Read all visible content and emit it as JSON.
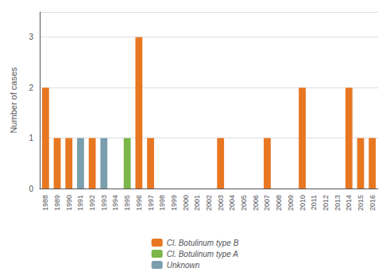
{
  "chart_data": {
    "type": "bar",
    "stacked": true,
    "grid": true,
    "legend": "bottom",
    "ylabel": "Number of cases",
    "categories": [
      "1988",
      "1989",
      "1990",
      "1991",
      "1992",
      "1993",
      "1994",
      "1995",
      "1996",
      "1997",
      "1998",
      "1999",
      "2000",
      "2001",
      "2002",
      "2003",
      "2004",
      "2005",
      "2006",
      "2007",
      "2008",
      "2009",
      "2010",
      "2011",
      "2012",
      "2013",
      "2014",
      "2015",
      "2016"
    ],
    "series": [
      {
        "name": "Cl. Botulinum type B",
        "color": "#E87722",
        "values": [
          2,
          1,
          1,
          0,
          1,
          0,
          0,
          0,
          3,
          1,
          0,
          0,
          0,
          0,
          0,
          1,
          0,
          0,
          0,
          1,
          0,
          0,
          2,
          0,
          0,
          0,
          2,
          1,
          1
        ]
      },
      {
        "name": "Cl. Botulinum type A",
        "color": "#7AB648",
        "values": [
          0,
          0,
          0,
          0,
          0,
          0,
          0,
          1,
          0,
          0,
          0,
          0,
          0,
          0,
          0,
          0,
          0,
          0,
          0,
          0,
          0,
          0,
          0,
          0,
          0,
          0,
          0,
          0,
          0
        ]
      },
      {
        "name": "Unknown",
        "color": "#7B9EAE",
        "values": [
          0,
          0,
          0,
          1,
          0,
          1,
          0,
          0,
          0,
          0,
          0,
          0,
          0,
          0,
          0,
          0,
          0,
          0,
          0,
          0,
          0,
          0,
          0,
          0,
          0,
          0,
          0,
          0,
          0
        ]
      }
    ],
    "ylim": [
      0,
      3.5
    ],
    "yticks": [
      0,
      1,
      2,
      3
    ]
  }
}
